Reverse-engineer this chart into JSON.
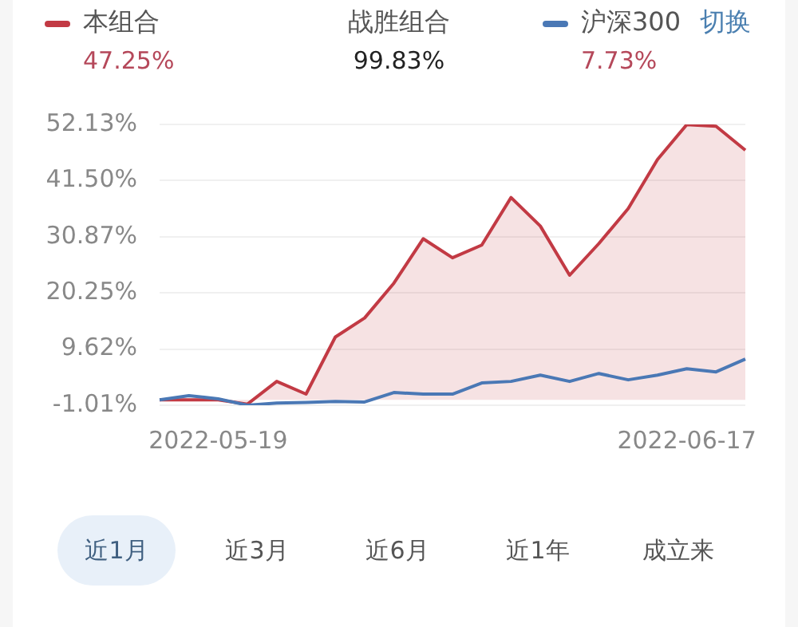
{
  "chart_data": {
    "type": "area",
    "categories": [
      null,
      null,
      "2022-05-19",
      null,
      null,
      null,
      null,
      null,
      null,
      null,
      null,
      null,
      null,
      null,
      null,
      null,
      null,
      null,
      "2022-06-17",
      null,
      null
    ],
    "series": [
      {
        "name": "本组合",
        "type": "area",
        "color": "#c23a44",
        "values": [
          0,
          0,
          0,
          -0.8,
          3.5,
          1.1,
          11.9,
          15.5,
          22.1,
          30.5,
          26.9,
          29.3,
          38.3,
          32.9,
          23.6,
          29.6,
          36.2,
          45.5,
          52.1,
          51.8,
          47.25
        ]
      },
      {
        "name": "沪深300",
        "type": "line",
        "color": "#4a78b5",
        "values": [
          0,
          0.8,
          0.2,
          -1.0,
          -0.6,
          -0.5,
          -0.3,
          -0.4,
          1.4,
          1.1,
          1.1,
          3.2,
          3.5,
          4.7,
          3.5,
          5.0,
          3.8,
          4.7,
          5.9,
          5.3,
          7.73
        ]
      }
    ],
    "ylim": [
      -1.01,
      52.13
    ],
    "yticks": [
      {
        "value": -1.01,
        "label": "-1.01%"
      },
      {
        "value": 9.62,
        "label": "9.62%"
      },
      {
        "value": 20.25,
        "label": "20.25%"
      },
      {
        "value": 30.87,
        "label": "30.87%"
      },
      {
        "value": 41.5,
        "label": "41.50%"
      },
      {
        "value": 52.13,
        "label": "52.13%"
      }
    ],
    "grid": "y",
    "legend": "top",
    "marker": "none",
    "annotations": [
      "47.25%",
      "战胜组合",
      "99.83%",
      "7.73%",
      "切换",
      "近1月",
      "近3月",
      "近6月",
      "近1年",
      "成立来"
    ]
  }
}
